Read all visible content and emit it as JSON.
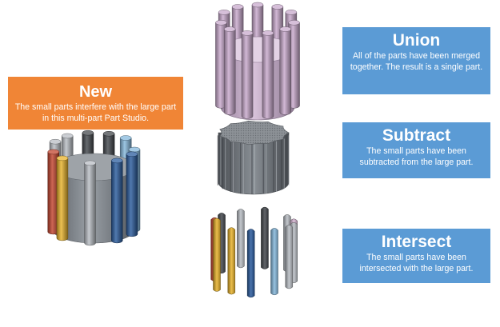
{
  "colors": {
    "new_box": "#F08536",
    "op_box": "#5B9BD5",
    "text": "#FFFFFF",
    "union_lilac": "#C8A9CC",
    "steel_gray": "#7B8087",
    "part_red": "#C2452F",
    "part_yellow": "#E8B32C",
    "part_navy": "#2B5C9E",
    "part_light_blue": "#86B8DC",
    "part_silver": "#B9BEC4",
    "part_dark_gray": "#45494E",
    "part_pink": "#D7B7D4"
  },
  "new": {
    "title": "New",
    "description": "The small parts interfere with the large part in this multi-part Part Studio."
  },
  "union": {
    "title": "Union",
    "description": "All of the parts have been merged together. The result is a single part."
  },
  "subtract": {
    "title": "Subtract",
    "description": "The small parts have been subtracted from the large part."
  },
  "intersect": {
    "title": "Intersect",
    "description": "The small parts have been intersected with the large part."
  }
}
